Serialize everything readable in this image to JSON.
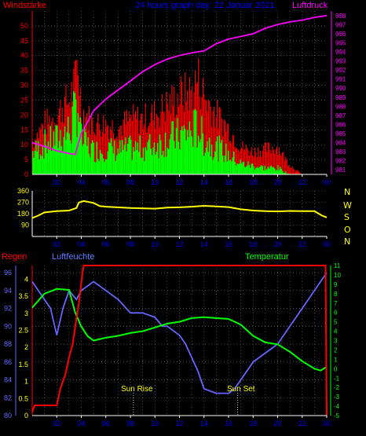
{
  "header": {
    "left": "Windstärke",
    "center": "24 hours graph day: 22 Januar 2021",
    "right": "Luftdruck"
  },
  "colors": {
    "wind_red": "#ff0000",
    "wind_green": "#00ff00",
    "pressure": "#ff00ff",
    "direction": "#ffff00",
    "rain": "#ff0000",
    "humidity": "#6666ff",
    "temperature": "#00ff00",
    "grid": "#808080",
    "title_center": "#0000ff",
    "humidity_label": "#5a7bff"
  },
  "x_ticks": [
    "02",
    "04",
    "06",
    "08",
    "10",
    "12",
    "14",
    "16",
    "18",
    "20",
    "22",
    "00"
  ],
  "compass": [
    "N",
    "W",
    "S",
    "O",
    "N"
  ],
  "lower": {
    "label_rain": "Regen",
    "label_humidity": "Luftfeuchte",
    "label_temperature": "Temperatur",
    "sunrise": "Sun Rise",
    "sunset": "Sun Set"
  },
  "chart_data": [
    {
      "type": "area",
      "name": "wind-pressure",
      "x_range_hours": [
        0,
        24
      ],
      "left_axis": {
        "ticks": [
          0,
          5,
          10,
          15,
          20,
          25,
          30,
          35,
          40,
          45,
          50
        ],
        "ylim": [
          0,
          55
        ]
      },
      "right_axis": {
        "ticks": [
          981,
          982,
          983,
          984,
          985,
          986,
          987,
          988,
          989,
          990,
          991,
          992,
          993,
          994,
          995,
          996,
          997,
          998
        ],
        "ylim": [
          980.5,
          998.5
        ]
      },
      "series": [
        {
          "name": "Windstärke",
          "gust_max": [
            [
              0,
              14
            ],
            [
              1,
              22
            ],
            [
              2,
              25
            ],
            [
              2.5,
              30
            ],
            [
              3,
              32
            ],
            [
              3.5,
              40
            ],
            [
              3.7,
              51
            ],
            [
              4,
              28
            ],
            [
              5,
              22
            ],
            [
              6,
              22
            ],
            [
              7,
              20
            ],
            [
              8,
              24
            ],
            [
              9,
              24
            ],
            [
              10,
              26
            ],
            [
              11,
              30
            ],
            [
              12,
              34
            ],
            [
              13,
              36
            ],
            [
              13.5,
              42
            ],
            [
              14,
              34
            ],
            [
              15,
              26
            ],
            [
              16,
              20
            ],
            [
              17,
              12
            ],
            [
              18,
              10
            ],
            [
              19,
              11
            ],
            [
              20,
              12
            ],
            [
              21,
              4
            ],
            [
              22,
              0
            ],
            [
              24,
              0
            ]
          ],
          "average": [
            [
              0,
              10
            ],
            [
              1,
              14
            ],
            [
              2,
              16
            ],
            [
              2.5,
              19
            ],
            [
              3,
              20
            ],
            [
              3.5,
              28
            ],
            [
              3.7,
              36
            ],
            [
              4,
              16
            ],
            [
              5,
              11
            ],
            [
              6,
              12
            ],
            [
              7,
              11
            ],
            [
              8,
              12
            ],
            [
              9,
              12
            ],
            [
              10,
              14
            ],
            [
              11,
              16
            ],
            [
              12,
              18
            ],
            [
              13,
              20
            ],
            [
              13.5,
              22
            ],
            [
              14,
              16
            ],
            [
              15,
              13
            ],
            [
              16,
              9
            ],
            [
              17,
              5
            ],
            [
              18,
              4
            ],
            [
              19,
              3
            ],
            [
              20,
              3
            ],
            [
              21,
              0
            ],
            [
              22,
              0
            ],
            [
              24,
              0
            ]
          ]
        },
        {
          "name": "Luftdruck",
          "points": [
            [
              0,
              984.0
            ],
            [
              1,
              983.6
            ],
            [
              2,
              983.1
            ],
            [
              3,
              982.8
            ],
            [
              3.5,
              982.7
            ],
            [
              4,
              985.0
            ],
            [
              5,
              987.5
            ],
            [
              6,
              988.8
            ],
            [
              7,
              989.8
            ],
            [
              8,
              990.8
            ],
            [
              9,
              991.8
            ],
            [
              10,
              992.6
            ],
            [
              11,
              993.2
            ],
            [
              12,
              993.6
            ],
            [
              13,
              993.9
            ],
            [
              14,
              994.1
            ],
            [
              15,
              994.9
            ],
            [
              16,
              995.4
            ],
            [
              17,
              995.7
            ],
            [
              18,
              996.0
            ],
            [
              19,
              996.6
            ],
            [
              20,
              997.0
            ],
            [
              21,
              997.3
            ],
            [
              22,
              997.5
            ],
            [
              23,
              997.8
            ],
            [
              24,
              998.0
            ]
          ]
        }
      ]
    },
    {
      "type": "line",
      "name": "wind-direction",
      "y_ticks": [
        90,
        180,
        270,
        360
      ],
      "ylim": [
        0,
        360
      ],
      "series": [
        {
          "name": "Windrichtung",
          "points": [
            [
              0,
              145
            ],
            [
              0.5,
              165
            ],
            [
              1,
              190
            ],
            [
              2,
              200
            ],
            [
              3,
              205
            ],
            [
              3.6,
              225
            ],
            [
              3.8,
              268
            ],
            [
              4.2,
              280
            ],
            [
              5,
              265
            ],
            [
              5.5,
              240
            ],
            [
              6,
              235
            ],
            [
              8,
              225
            ],
            [
              10,
              220
            ],
            [
              11,
              228
            ],
            [
              12,
              230
            ],
            [
              13,
              235
            ],
            [
              14,
              242
            ],
            [
              15,
              238
            ],
            [
              16,
              232
            ],
            [
              17,
              215
            ],
            [
              18,
              205
            ],
            [
              19,
              200
            ],
            [
              20,
              198
            ],
            [
              21,
              202
            ],
            [
              22,
              200
            ],
            [
              23,
              200
            ],
            [
              23.6,
              165
            ],
            [
              24,
              150
            ]
          ]
        }
      ]
    },
    {
      "type": "line",
      "name": "rain-humidity-temperature",
      "axes": {
        "rain": {
          "ticks": [
            0,
            0.5,
            1,
            1.5,
            2,
            2.5,
            3,
            3.5,
            4
          ],
          "ylim": [
            0,
            4.4
          ]
        },
        "humidity": {
          "ticks": [
            80,
            82,
            84,
            86,
            88,
            90,
            92,
            94,
            96
          ],
          "ylim": [
            80,
            96.8
          ]
        },
        "temperature": {
          "ticks": [
            -5,
            -4,
            -3,
            -2,
            -1,
            0,
            1,
            2,
            3,
            4,
            5,
            6,
            7,
            8,
            9,
            10,
            11
          ],
          "ylim": [
            -5,
            11
          ]
        }
      },
      "series": [
        {
          "name": "Regen",
          "points": [
            [
              0,
              0.1
            ],
            [
              0.2,
              0.3
            ],
            [
              2,
              0.3
            ],
            [
              2.3,
              0.8
            ],
            [
              2.7,
              1.2
            ],
            [
              3,
              1.7
            ],
            [
              3.3,
              2.1
            ],
            [
              3.5,
              2.6
            ],
            [
              3.8,
              3.3
            ],
            [
              4.1,
              4.2
            ],
            [
              4.2,
              4.4
            ],
            [
              23.9,
              4.4
            ],
            [
              24,
              0
            ]
          ]
        },
        {
          "name": "Luftfeuchte",
          "points": [
            [
              0,
              95
            ],
            [
              1,
              93
            ],
            [
              1.5,
              92
            ],
            [
              2,
              89
            ],
            [
              2.5,
              92
            ],
            [
              3,
              94
            ],
            [
              3.6,
              93
            ],
            [
              4,
              94
            ],
            [
              5,
              95
            ],
            [
              6,
              94
            ],
            [
              7,
              93
            ],
            [
              8,
              91.5
            ],
            [
              9,
              91.5
            ],
            [
              10,
              91
            ],
            [
              10.6,
              90
            ],
            [
              11,
              90
            ],
            [
              12,
              89
            ],
            [
              12.5,
              88
            ],
            [
              13,
              86.5
            ],
            [
              13.5,
              85
            ],
            [
              14,
              83
            ],
            [
              15,
              82.5
            ],
            [
              16,
              82.5
            ],
            [
              16.5,
              83
            ],
            [
              17,
              84
            ],
            [
              17.5,
              85
            ],
            [
              18,
              86
            ],
            [
              19,
              87
            ],
            [
              20,
              88
            ],
            [
              21,
              90
            ],
            [
              22,
              92
            ],
            [
              23,
              94
            ],
            [
              23.5,
              95
            ],
            [
              24,
              96
            ]
          ]
        },
        {
          "name": "Temperatur",
          "points": [
            [
              0,
              6.5
            ],
            [
              1,
              8.0
            ],
            [
              2,
              8.5
            ],
            [
              3,
              8.4
            ],
            [
              3.5,
              6.0
            ],
            [
              4,
              4.5
            ],
            [
              4.5,
              3.5
            ],
            [
              5,
              3.0
            ],
            [
              6,
              3.3
            ],
            [
              7,
              3.5
            ],
            [
              8,
              3.8
            ],
            [
              9,
              4.0
            ],
            [
              10,
              4.4
            ],
            [
              11,
              4.8
            ],
            [
              12,
              5.0
            ],
            [
              13,
              5.4
            ],
            [
              14,
              5.5
            ],
            [
              15,
              5.4
            ],
            [
              16,
              5.3
            ],
            [
              17,
              4.7
            ],
            [
              18,
              3.5
            ],
            [
              19,
              2.8
            ],
            [
              20,
              2.6
            ],
            [
              21,
              1.8
            ],
            [
              22,
              0.8
            ],
            [
              23,
              0.0
            ],
            [
              23.5,
              -0.2
            ],
            [
              24,
              0.2
            ]
          ]
        }
      ]
    }
  ]
}
